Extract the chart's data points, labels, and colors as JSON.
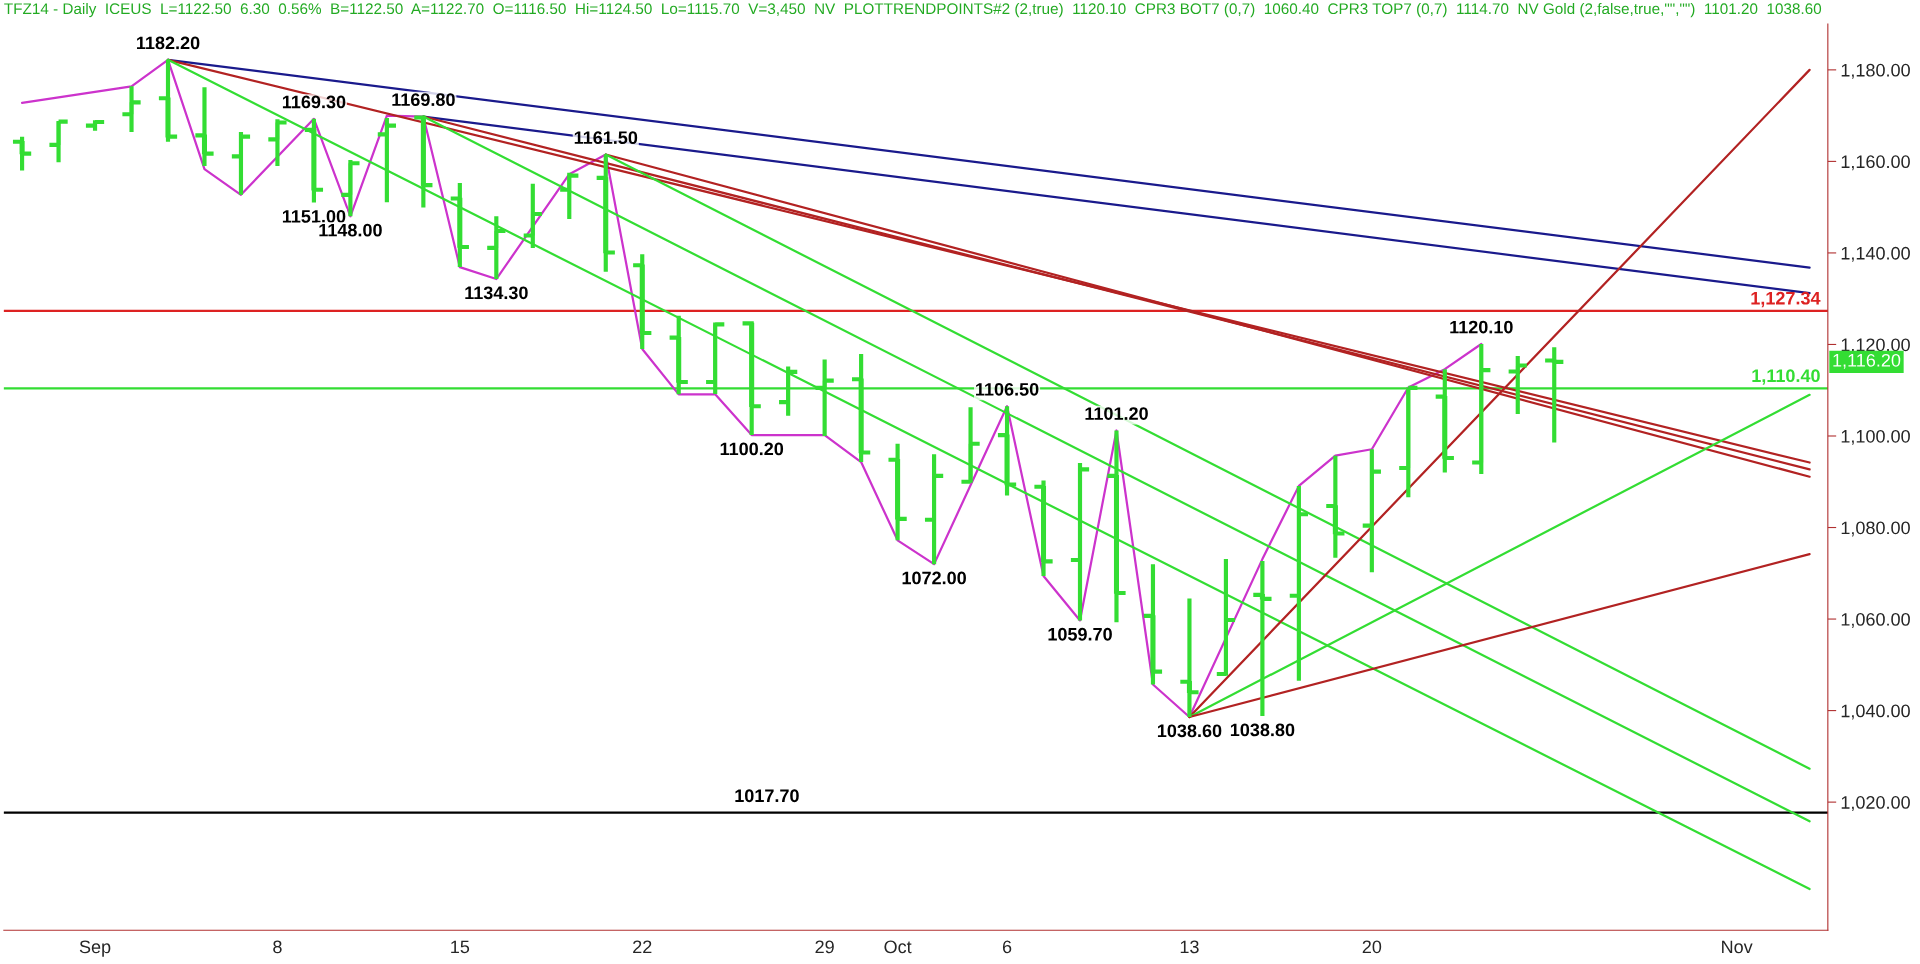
{
  "chart_data": {
    "type": "candlestick",
    "title": "TFZ14 - Daily  ICEUS  L=1122.50  6.30  0.56%  B=1122.50  A=1122.70  O=1116.50  Hi=1124.50  Lo=1115.70  V=3,450  NV  PLOTTRENDPOINTS#2 (2,true)  1120.10  CPR3 BOT7 (0,7)  1060.40  CPR3 TOP7 (0,7)  1114.70  NV Gold (2,false,true,\"\",\"\")  1101.20  1038.60",
    "categories": [
      null,
      null,
      "Sep",
      null,
      null,
      null,
      null,
      "8",
      null,
      null,
      null,
      null,
      "15",
      null,
      null,
      null,
      null,
      "22",
      null,
      null,
      null,
      null,
      "29",
      null,
      "Oct",
      null,
      null,
      "6",
      null,
      null,
      null,
      null,
      "13",
      null,
      null,
      null,
      null,
      "20",
      null,
      null,
      null,
      null,
      null,
      null,
      null,
      null,
      null,
      "Nov",
      null,
      null
    ],
    "ohlc": [
      [
        1164.3,
        1165.4,
        1158.0,
        1161.7
      ],
      [
        1163.6,
        1168.8,
        1159.8,
        1168.7
      ],
      [
        1167.8,
        1169.0,
        1166.7,
        1168.6
      ],
      [
        1170.3,
        1176.4,
        1166.4,
        1172.9
      ],
      [
        1173.8,
        1182.2,
        1164.3,
        1165.4
      ],
      [
        1165.7,
        1176.2,
        1159.0,
        1161.7
      ],
      [
        1161.1,
        1166.4,
        1152.7,
        1165.4
      ],
      [
        1164.8,
        1169.2,
        1159.0,
        1168.5
      ],
      [
        1166.9,
        1169.3,
        1151.0,
        1153.8
      ],
      [
        1152.7,
        1160.3,
        1148.0,
        1159.6
      ],
      [
        1165.9,
        1169.5,
        1151.1,
        1167.8
      ],
      [
        1169.6,
        1169.8,
        1149.9,
        1154.8
      ],
      [
        1151.9,
        1155.3,
        1136.9,
        1141.3
      ],
      [
        1141.1,
        1148.0,
        1134.3,
        1144.8
      ],
      [
        1143.8,
        1155.1,
        1141.1,
        1148.5
      ],
      [
        1153.8,
        1157.5,
        1147.4,
        1156.9
      ],
      [
        1156.4,
        1161.5,
        1135.9,
        1140.1
      ],
      [
        1137.3,
        1139.7,
        1119.0,
        1122.5
      ],
      [
        1121.5,
        1126.3,
        1109.1,
        1111.8
      ],
      [
        1111.8,
        1124.8,
        1109.2,
        1124.4
      ],
      [
        1124.6,
        1124.8,
        1100.2,
        1106.5
      ],
      [
        1107.4,
        1115.2,
        1104.4,
        1114.0
      ],
      [
        1110.5,
        1116.7,
        1100.0,
        1112.1
      ],
      [
        1112.4,
        1117.9,
        1094.3,
        1096.4
      ],
      [
        1094.8,
        1098.3,
        1077.2,
        1081.9
      ],
      [
        1081.7,
        1096.0,
        1072.0,
        1091.3
      ],
      [
        1090.0,
        1106.3,
        1089.8,
        1098.3
      ],
      [
        1100.2,
        1106.5,
        1087.0,
        1089.4
      ],
      [
        1088.9,
        1090.3,
        1069.4,
        1072.6
      ],
      [
        1072.9,
        1094.1,
        1059.7,
        1092.7
      ],
      [
        1091.3,
        1101.2,
        1059.3,
        1065.7
      ],
      [
        1060.7,
        1072.0,
        1045.7,
        1048.5
      ],
      [
        1046.3,
        1064.5,
        1038.6,
        1044.0
      ],
      [
        1048.0,
        1073.1,
        1047.6,
        1059.8
      ],
      [
        1065.3,
        1072.7,
        1038.8,
        1064.4
      ],
      [
        1065.1,
        1089.1,
        1046.5,
        1082.9
      ],
      [
        1084.7,
        1095.7,
        1073.4,
        1078.7
      ],
      [
        1080.4,
        1097.1,
        1070.2,
        1092.2
      ],
      [
        1093.0,
        1110.6,
        1086.6,
        1110.5
      ],
      [
        1108.6,
        1114.6,
        1092.0,
        1095.2
      ],
      [
        1094.2,
        1120.1,
        1091.7,
        1114.4
      ],
      [
        1114.1,
        1117.5,
        1104.8,
        1115.4
      ],
      [
        1116.5,
        1119.4,
        1098.6,
        1116.2
      ],
      null,
      null,
      null,
      null,
      null,
      null,
      null
    ],
    "color": "#33dd33",
    "series": [
      {
        "type": "line",
        "color": "#cc33cc",
        "values": [
          1172.8,
          null,
          null,
          1176.4,
          1182.2,
          1158.3,
          1152.7,
          null,
          1169.3,
          1148.0,
          1170.0,
          1169.8,
          1136.9,
          1134.3,
          null,
          1157.2,
          1161.5,
          1119.0,
          1109.1,
          1109.1,
          1100.2,
          null,
          1100.2,
          1094.3,
          1077.2,
          1072.0,
          null,
          1106.5,
          1069.4,
          1059.7,
          1101.2,
          1045.7,
          1038.6,
          null,
          1073.1,
          1089.1,
          1095.7,
          1097.1,
          1110.6,
          1114.6,
          1120.1,
          null,
          null,
          null,
          null,
          null,
          null,
          null,
          null,
          null
        ]
      },
      {
        "type": "line",
        "color": "#1a1a8c",
        "values": [
          null,
          null,
          null,
          null,
          1182.2,
          null,
          null,
          null,
          null,
          null,
          null,
          null,
          null,
          null,
          null,
          null,
          null,
          null,
          null,
          null,
          null,
          null,
          null,
          null,
          null,
          null,
          null,
          null,
          null,
          null,
          null,
          null,
          null,
          null,
          null,
          null,
          null,
          null,
          null,
          null,
          null,
          null,
          null,
          null,
          null,
          null,
          null,
          null,
          null,
          1136.8
        ]
      },
      {
        "type": "line",
        "color": "#1a1a8c",
        "values": [
          null,
          null,
          null,
          null,
          null,
          null,
          null,
          null,
          null,
          null,
          null,
          1169.8,
          null,
          null,
          null,
          null,
          null,
          null,
          null,
          null,
          null,
          null,
          null,
          null,
          null,
          null,
          null,
          null,
          null,
          null,
          null,
          null,
          null,
          null,
          null,
          null,
          null,
          null,
          null,
          null,
          null,
          null,
          null,
          null,
          null,
          null,
          null,
          null,
          null,
          1131.2
        ]
      },
      {
        "type": "line",
        "color": "#b22222",
        "values": [
          null,
          null,
          null,
          null,
          1182.2,
          null,
          null,
          null,
          null,
          null,
          null,
          null,
          null,
          null,
          null,
          null,
          null,
          null,
          null,
          null,
          null,
          null,
          null,
          null,
          null,
          null,
          null,
          null,
          null,
          null,
          null,
          null,
          null,
          null,
          null,
          null,
          null,
          null,
          null,
          null,
          null,
          null,
          null,
          null,
          null,
          null,
          null,
          null,
          null,
          1094.2
        ]
      },
      {
        "type": "line",
        "color": "#b22222",
        "values": [
          null,
          null,
          null,
          null,
          null,
          null,
          null,
          null,
          null,
          null,
          null,
          1169.8,
          null,
          null,
          null,
          null,
          null,
          null,
          null,
          null,
          null,
          null,
          null,
          null,
          null,
          null,
          null,
          null,
          null,
          null,
          null,
          null,
          null,
          null,
          null,
          null,
          null,
          null,
          null,
          null,
          null,
          null,
          null,
          null,
          null,
          null,
          null,
          null,
          null,
          1092.7
        ]
      },
      {
        "type": "line",
        "color": "#b22222",
        "values": [
          null,
          null,
          null,
          null,
          null,
          null,
          null,
          null,
          null,
          null,
          null,
          null,
          null,
          null,
          null,
          null,
          1161.5,
          null,
          null,
          null,
          null,
          null,
          null,
          null,
          null,
          null,
          null,
          null,
          null,
          null,
          null,
          null,
          null,
          null,
          null,
          null,
          null,
          null,
          null,
          null,
          null,
          null,
          null,
          null,
          null,
          null,
          null,
          null,
          null,
          1091.1
        ]
      },
      {
        "type": "line",
        "color": "#33dd33",
        "values": [
          null,
          null,
          null,
          null,
          1182.2,
          null,
          null,
          null,
          null,
          null,
          null,
          null,
          null,
          null,
          null,
          null,
          null,
          null,
          null,
          null,
          null,
          null,
          null,
          null,
          null,
          null,
          null,
          null,
          null,
          null,
          null,
          null,
          null,
          null,
          null,
          null,
          null,
          null,
          null,
          null,
          null,
          null,
          null,
          null,
          null,
          null,
          null,
          null,
          null,
          1001.0
        ]
      },
      {
        "type": "line",
        "color": "#33dd33",
        "values": [
          null,
          null,
          null,
          null,
          null,
          null,
          null,
          null,
          null,
          null,
          null,
          1169.8,
          null,
          null,
          null,
          null,
          null,
          null,
          null,
          null,
          null,
          null,
          null,
          null,
          null,
          null,
          null,
          null,
          null,
          null,
          null,
          null,
          null,
          null,
          null,
          null,
          null,
          null,
          null,
          null,
          null,
          null,
          null,
          null,
          null,
          null,
          null,
          null,
          null,
          1015.8
        ]
      },
      {
        "type": "line",
        "color": "#33dd33",
        "values": [
          null,
          null,
          null,
          null,
          null,
          null,
          null,
          null,
          null,
          null,
          null,
          null,
          null,
          null,
          null,
          null,
          1161.5,
          null,
          null,
          null,
          null,
          null,
          null,
          null,
          null,
          null,
          null,
          null,
          null,
          null,
          null,
          null,
          null,
          null,
          null,
          null,
          null,
          null,
          null,
          null,
          null,
          null,
          null,
          null,
          null,
          null,
          null,
          null,
          null,
          1027.3
        ]
      },
      {
        "type": "line",
        "color": "#b22222",
        "values": [
          null,
          null,
          null,
          null,
          null,
          null,
          null,
          null,
          null,
          null,
          null,
          null,
          null,
          null,
          null,
          null,
          null,
          null,
          null,
          null,
          null,
          null,
          null,
          null,
          null,
          null,
          null,
          null,
          null,
          null,
          null,
          null,
          1038.6,
          null,
          null,
          null,
          null,
          null,
          null,
          null,
          null,
          null,
          null,
          null,
          null,
          null,
          null,
          null,
          null,
          1180.0
        ]
      },
      {
        "type": "line",
        "color": "#33dd33",
        "values": [
          null,
          null,
          null,
          null,
          null,
          null,
          null,
          null,
          null,
          null,
          null,
          null,
          null,
          null,
          null,
          null,
          null,
          null,
          null,
          null,
          null,
          null,
          null,
          null,
          null,
          null,
          null,
          null,
          null,
          null,
          null,
          null,
          1038.6,
          null,
          null,
          null,
          null,
          null,
          null,
          null,
          null,
          null,
          null,
          null,
          null,
          null,
          null,
          null,
          null,
          1109.0
        ]
      },
      {
        "type": "line",
        "color": "#b22222",
        "values": [
          null,
          null,
          null,
          null,
          null,
          null,
          null,
          null,
          null,
          null,
          null,
          null,
          null,
          null,
          null,
          null,
          null,
          null,
          null,
          null,
          null,
          null,
          null,
          null,
          null,
          null,
          null,
          null,
          null,
          null,
          null,
          null,
          1038.6,
          null,
          null,
          null,
          null,
          null,
          null,
          null,
          null,
          null,
          null,
          null,
          null,
          null,
          null,
          null,
          null,
          1074.2
        ]
      }
    ],
    "ref_lines": [
      {
        "axis": "y",
        "value": 1127.34,
        "label": "1,127.34",
        "color": "#dd2222"
      },
      {
        "axis": "y",
        "value": 1110.4,
        "label": "1,110.40",
        "color": "#33dd33"
      },
      {
        "axis": "y",
        "value": 1017.7,
        "color": "#000000"
      }
    ],
    "annotations": [
      {
        "text": "1182.20",
        "y": 1182.2
      },
      {
        "text": "1169.30",
        "y": 1169.3
      },
      {
        "text": "1151.00",
        "y": 1151.0
      },
      {
        "text": "1148.00",
        "y": 1148.0
      },
      {
        "text": "1169.80",
        "y": 1169.8
      },
      {
        "text": "1134.30",
        "y": 1134.3
      },
      {
        "text": "1161.50",
        "y": 1161.5
      },
      {
        "text": "1100.20",
        "y": 1100.2
      },
      {
        "text": "1072.00",
        "y": 1072.0
      },
      {
        "text": "1106.50",
        "y": 1106.5
      },
      {
        "text": "1059.70",
        "y": 1059.7
      },
      {
        "text": "1101.20",
        "y": 1101.2
      },
      {
        "text": "1038.60",
        "y": 1038.6
      },
      {
        "text": "1038.80",
        "y": 1038.8
      },
      {
        "text": "1120.10",
        "y": 1120.1
      },
      {
        "text": "1017.70",
        "y": 1017.7
      },
      "1,116.20"
    ],
    "ylim": [
      992,
      1190
    ],
    "yticks": [
      {
        "value": 1020,
        "label": "1,020.00"
      },
      {
        "value": 1040,
        "label": "1,040.00"
      },
      {
        "value": 1060,
        "label": "1,060.00"
      },
      {
        "value": 1080,
        "label": "1,080.00"
      },
      {
        "value": 1100,
        "label": "1,100.00"
      },
      {
        "value": 1120,
        "label": "1,120.00"
      },
      {
        "value": 1140,
        "label": "1,140.00"
      },
      {
        "value": 1160,
        "label": "1,160.00"
      },
      {
        "value": 1180,
        "label": "1,180.00"
      }
    ],
    "grid": false,
    "legend": false
  }
}
